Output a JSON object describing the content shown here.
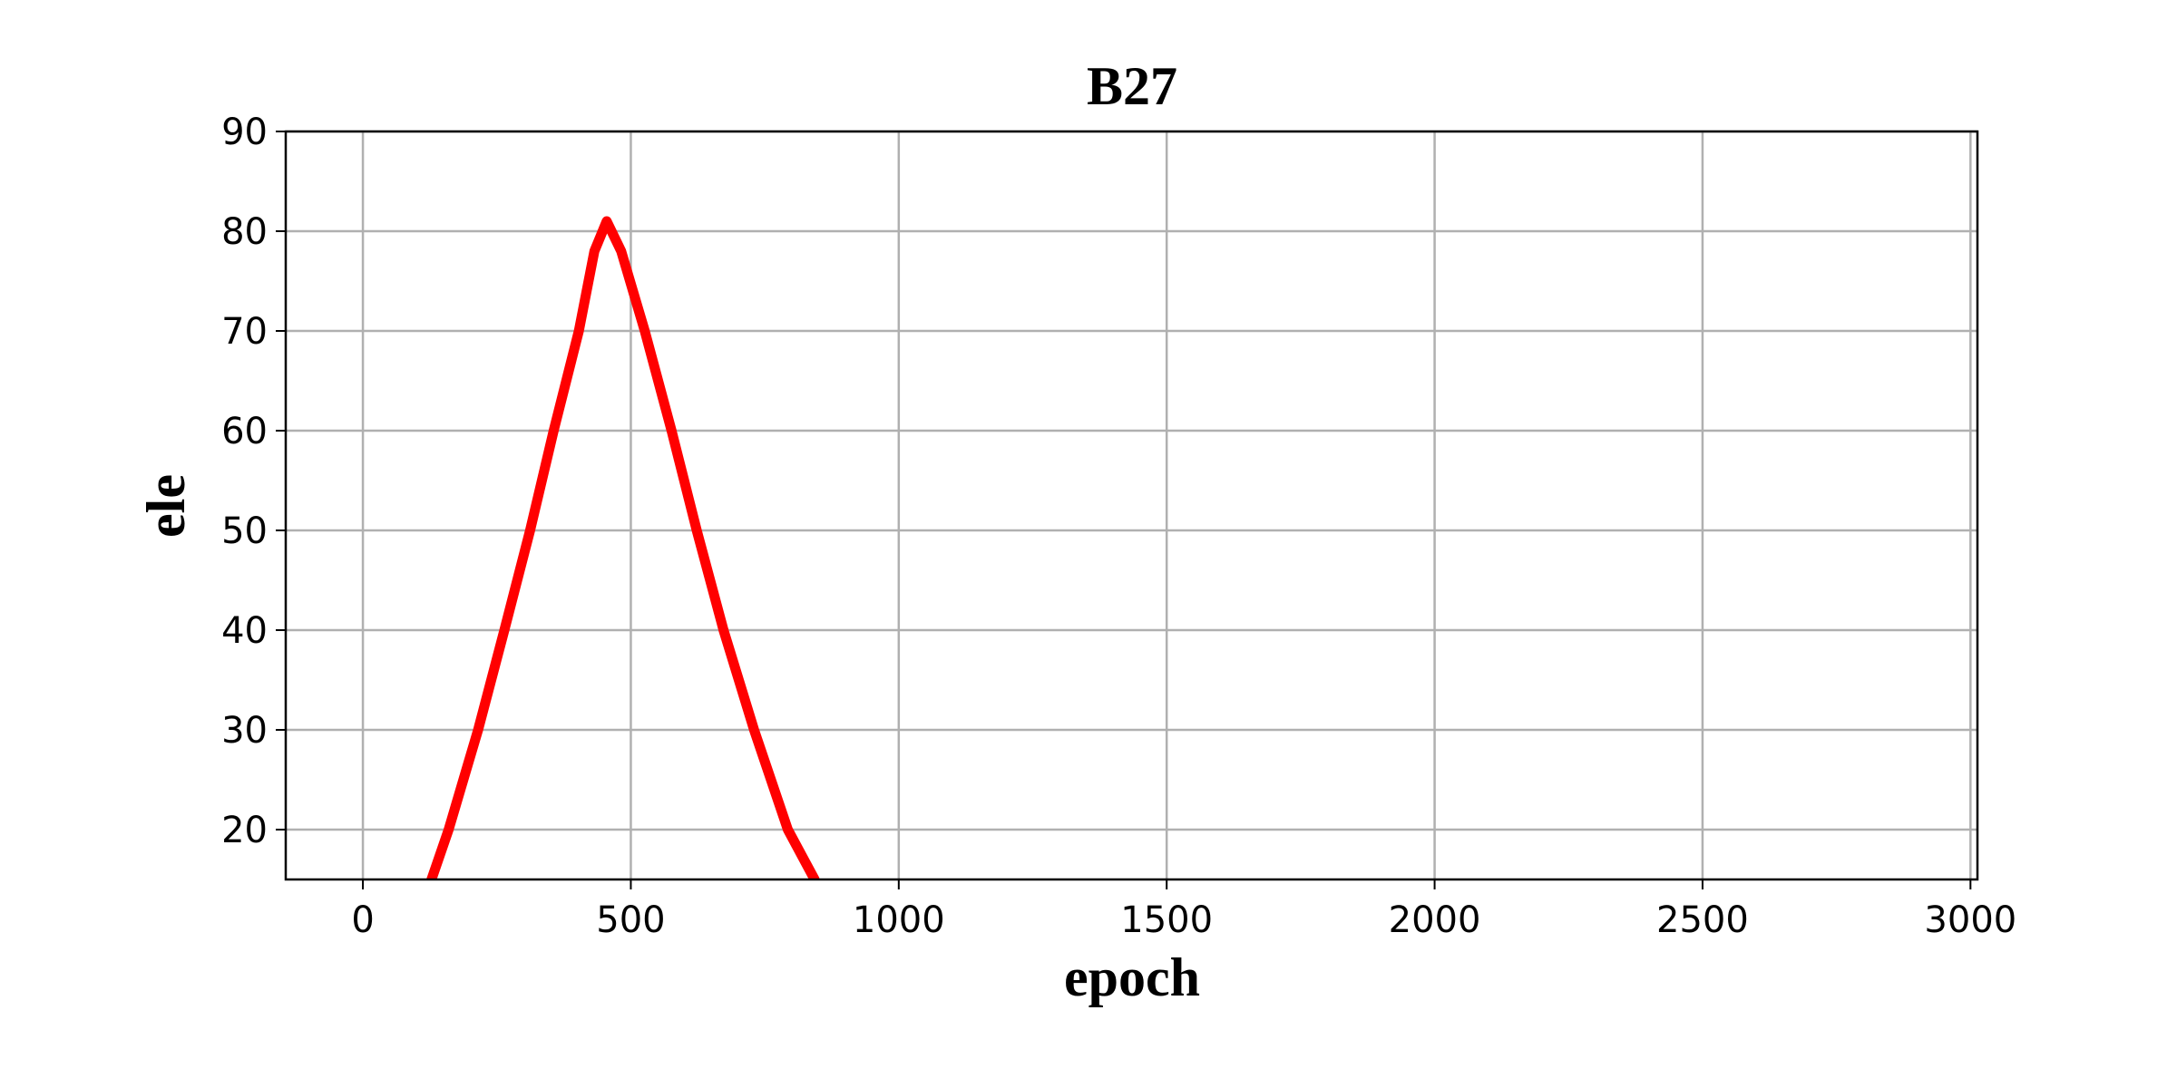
{
  "chart_data": {
    "type": "line",
    "title": "B27",
    "x_label": "epoch",
    "y_label": "ele",
    "x": [
      128,
      160,
      215,
      264,
      312,
      356,
      403,
      432,
      455,
      482,
      526,
      576,
      623,
      673,
      730,
      793,
      843
    ],
    "series": [
      {
        "name": "B27",
        "color": "#ff0000",
        "values": [
          15,
          20,
          30,
          40,
          50,
          60,
          70,
          78,
          81,
          78,
          70,
          60,
          50,
          40,
          30,
          20,
          15
        ]
      }
    ],
    "xlim": [
      -144,
      3013
    ],
    "xticks": [
      0,
      500,
      1000,
      1500,
      2000,
      2500,
      3000
    ],
    "ylim": [
      15,
      90
    ],
    "yticks": [
      20,
      30,
      40,
      50,
      60,
      70,
      80,
      90
    ],
    "grid": true
  }
}
